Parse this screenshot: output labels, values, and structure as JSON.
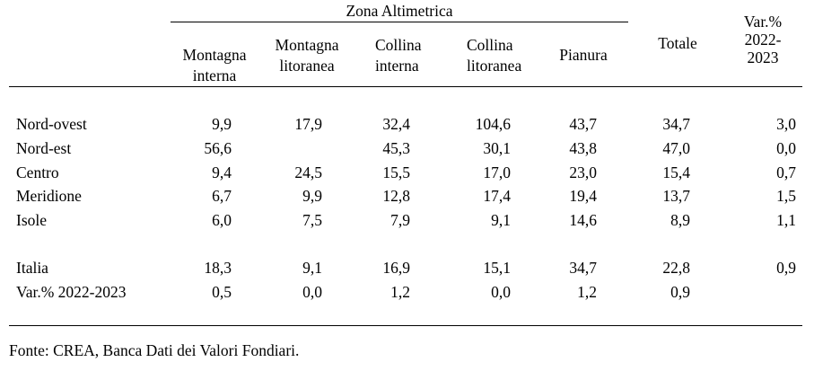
{
  "group_header": "Zona Altimetrica",
  "columns": {
    "montagna_interna": [
      "Montagna",
      "interna"
    ],
    "montagna_litoranea": [
      "Montagna",
      "litoranea"
    ],
    "collina_interna": [
      "Collina",
      "interna"
    ],
    "collina_litoranea": [
      "Collina",
      "litoranea"
    ],
    "pianura": "Pianura",
    "totale": "Totale",
    "var": [
      "Var.%",
      "2022-",
      "2023"
    ]
  },
  "rows": [
    {
      "label": "Nord-ovest",
      "mi": "9,9",
      "ml": "17,9",
      "ci": "32,4",
      "cl": "104,6",
      "p": "43,7",
      "t": "34,7",
      "v": "3,0"
    },
    {
      "label": "Nord-est",
      "mi": "56,6",
      "ml": "",
      "ci": "45,3",
      "cl": "30,1",
      "p": "43,8",
      "t": "47,0",
      "v": "0,0"
    },
    {
      "label": "Centro",
      "mi": "9,4",
      "ml": "24,5",
      "ci": "15,5",
      "cl": "17,0",
      "p": "23,0",
      "t": "15,4",
      "v": "0,7"
    },
    {
      "label": "Meridione",
      "mi": "6,7",
      "ml": "9,9",
      "ci": "12,8",
      "cl": "17,4",
      "p": "19,4",
      "t": "13,7",
      "v": "1,5"
    },
    {
      "label": "Isole",
      "mi": "6,0",
      "ml": "7,5",
      "ci": "7,9",
      "cl": "9,1",
      "p": "14,6",
      "t": "8,9",
      "v": "1,1"
    },
    {
      "label": "Italia",
      "mi": "18,3",
      "ml": "9,1",
      "ci": "16,9",
      "cl": "15,1",
      "p": "34,7",
      "t": "22,8",
      "v": "0,9"
    },
    {
      "label": "Var.% 2022-2023",
      "mi": "0,5",
      "ml": "0,0",
      "ci": "1,2",
      "cl": "0,0",
      "p": "1,2",
      "t": "0,9",
      "v": ""
    }
  ],
  "source_note": "Fonte: CREA, Banca Dati dei Valori Fondiari."
}
